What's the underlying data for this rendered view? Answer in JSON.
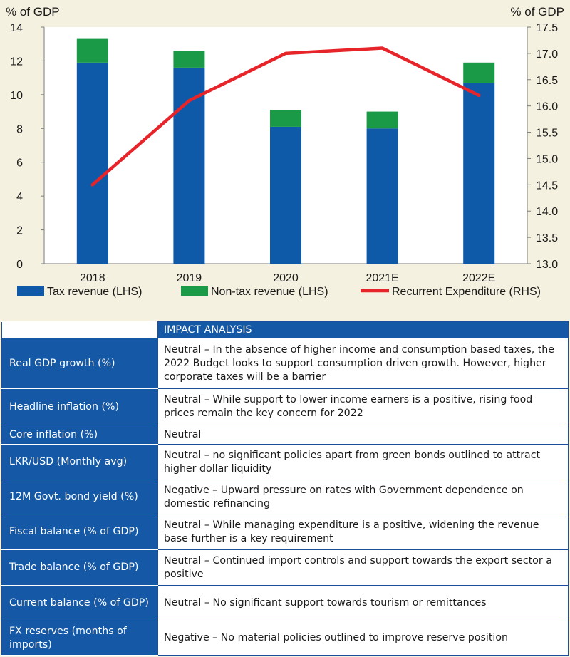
{
  "chart_data": {
    "type": "bar",
    "stacked": true,
    "categories": [
      "2018",
      "2019",
      "2020",
      "2021E",
      "2022E"
    ],
    "series": [
      {
        "name": "Tax revenue (LHS)",
        "axis": "left",
        "kind": "bar",
        "color": "#0f5aa8",
        "values": [
          11.9,
          11.6,
          8.1,
          8.0,
          10.7
        ]
      },
      {
        "name": "Non-tax revenue (LHS)",
        "axis": "left",
        "kind": "bar",
        "color": "#1a9a47",
        "values": [
          1.4,
          1.0,
          1.0,
          1.0,
          1.2
        ]
      },
      {
        "name": "Recurrent Expenditure (RHS)",
        "axis": "right",
        "kind": "line",
        "color": "#e8242b",
        "values": [
          14.5,
          16.1,
          17.0,
          17.1,
          16.2
        ]
      }
    ],
    "ylabel_left": "% of GDP",
    "ylabel_right": "% of GDP",
    "ylim_left": [
      0,
      14
    ],
    "ylim_right": [
      13.0,
      17.5
    ],
    "yticks_left": [
      "0",
      "2",
      "4",
      "6",
      "8",
      "10",
      "12",
      "14"
    ],
    "yticks_right": [
      "13.0",
      "13.5",
      "14.0",
      "14.5",
      "15.0",
      "15.5",
      "16.0",
      "16.5",
      "17.0",
      "17.5"
    ],
    "grid": false,
    "legend": "bottom"
  },
  "table": {
    "header": "IMPACT ANALYSIS",
    "rows": [
      {
        "label": "Real GDP growth (%)",
        "text": "Neutral – In the absence of higher income and consumption based taxes, the 2022 Budget looks to support consumption driven growth. However, higher corporate taxes will be a barrier"
      },
      {
        "label": "Headline inflation (%)",
        "text": "Neutral – While support to lower income earners is a positive, rising food prices remain the key concern for 2022"
      },
      {
        "label": "Core inflation (%)",
        "text": "Neutral"
      },
      {
        "label": "LKR/USD (Monthly avg)",
        "text": "Neutral – no significant policies apart from green bonds outlined to attract higher dollar liquidity"
      },
      {
        "label": "12M Govt. bond yield (%)",
        "text": "Negative – Upward pressure on rates with Government dependence on domestic refinancing"
      },
      {
        "label": "Fiscal balance (% of GDP)",
        "text": "Neutral – While managing expenditure is a positive, widening the revenue base further is a key requirement"
      },
      {
        "label": "Trade balance (% of GDP)",
        "text": "Neutral – Continued import controls and support towards the export sector a positive"
      },
      {
        "label": "Current balance (% of GDP)",
        "text": "Neutral – No significant support towards tourism or remittances"
      },
      {
        "label": "FX reserves (months of imports)",
        "text": "Negative – No material policies outlined to improve reserve position"
      }
    ]
  }
}
